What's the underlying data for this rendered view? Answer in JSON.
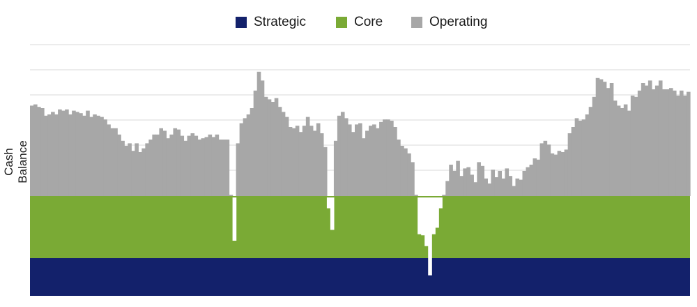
{
  "chart_data": {
    "type": "area",
    "title": "",
    "xlabel": "",
    "ylabel": "Cash Balance",
    "legend_position": "top",
    "grid": true,
    "colors": {
      "Strategic": "#13216b",
      "Core": "#7aaa35",
      "Operating": "#a7a7a7",
      "grid": "#d9d9d9"
    },
    "series": [
      {
        "name": "Strategic",
        "values": []
      },
      {
        "name": "Core",
        "values": []
      },
      {
        "name": "Operating",
        "values": []
      }
    ],
    "_total": [
      72,
      73,
      71,
      70,
      64,
      65,
      67,
      65,
      69,
      68,
      69,
      65,
      68,
      67,
      66,
      64,
      68,
      63,
      65,
      64,
      63,
      61,
      57,
      54,
      54,
      49,
      44,
      40,
      42,
      36,
      42,
      35,
      38,
      42,
      45,
      49,
      49,
      54,
      52,
      46,
      49,
      54,
      53,
      48,
      44,
      48,
      50,
      48,
      45,
      46,
      47,
      49,
      47,
      49,
      45,
      45,
      45,
      1,
      -40,
      42,
      58,
      62,
      65,
      70,
      84,
      99,
      92,
      79,
      77,
      75,
      78,
      71,
      67,
      63,
      55,
      54,
      56,
      51,
      56,
      63,
      56,
      52,
      58,
      50,
      39,
      -10,
      -30,
      44,
      64,
      67,
      62,
      57,
      51,
      57,
      58,
      46,
      52,
      56,
      57,
      54,
      59,
      61,
      61,
      60,
      55,
      45,
      40,
      38,
      34,
      27,
      1,
      -34,
      -35,
      -45,
      -72,
      -34,
      -28,
      -10,
      1,
      12,
      25,
      20,
      28,
      16,
      22,
      23,
      17,
      11,
      27,
      24,
      14,
      10,
      21,
      15,
      20,
      14,
      22,
      16,
      8,
      14,
      13,
      20,
      23,
      25,
      30,
      29,
      42,
      44,
      41,
      34,
      33,
      36,
      35,
      37,
      50,
      55,
      62,
      60,
      61,
      65,
      71,
      79,
      94,
      93,
      91,
      86,
      90,
      76,
      72,
      70,
      73,
      68,
      80,
      79,
      84,
      90,
      88,
      92,
      85,
      88,
      92,
      85,
      85,
      86,
      84,
      80,
      84,
      80,
      83
    ]
  }
}
